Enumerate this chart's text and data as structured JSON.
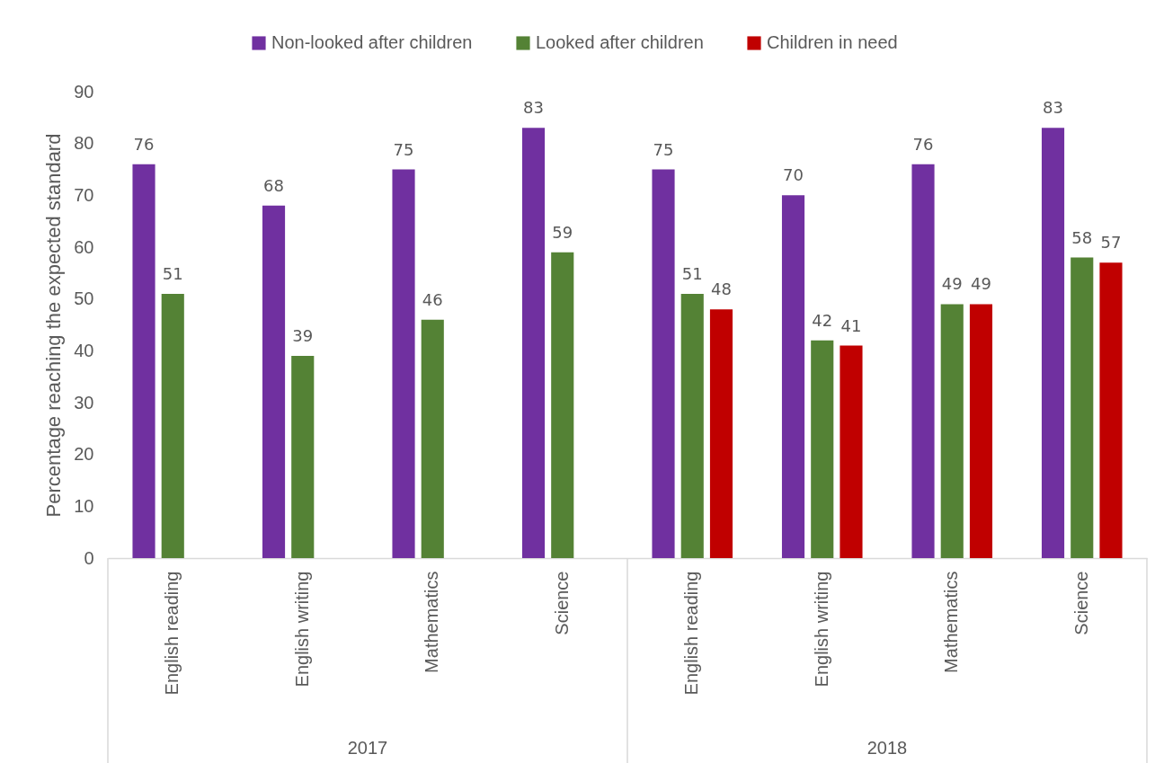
{
  "chart_data": {
    "type": "bar",
    "ylabel": "Percentage reaching the expected standard",
    "categories": [
      "English reading",
      "English writing",
      "Mathematics",
      "Science",
      "English reading",
      "English writing",
      "Mathematics",
      "Science"
    ],
    "series": [
      {
        "name": "Non-looked after children",
        "color": "#7030a0",
        "values": [
          76,
          68,
          75,
          83,
          75,
          70,
          76,
          83
        ]
      },
      {
        "name": "Looked after children",
        "color": "#548235",
        "values": [
          51,
          39,
          46,
          59,
          51,
          42,
          49,
          58
        ]
      },
      {
        "name": "Children in need",
        "color": "#c00000",
        "values": [
          null,
          null,
          null,
          null,
          48,
          41,
          49,
          57
        ]
      }
    ],
    "annotations": [
      "2017",
      "2018"
    ],
    "ylim": [
      0,
      90
    ],
    "yticks": [
      0,
      10,
      20,
      30,
      40,
      50,
      60,
      70,
      80,
      90
    ],
    "data_labels": true,
    "grid": false,
    "legend": "top"
  }
}
